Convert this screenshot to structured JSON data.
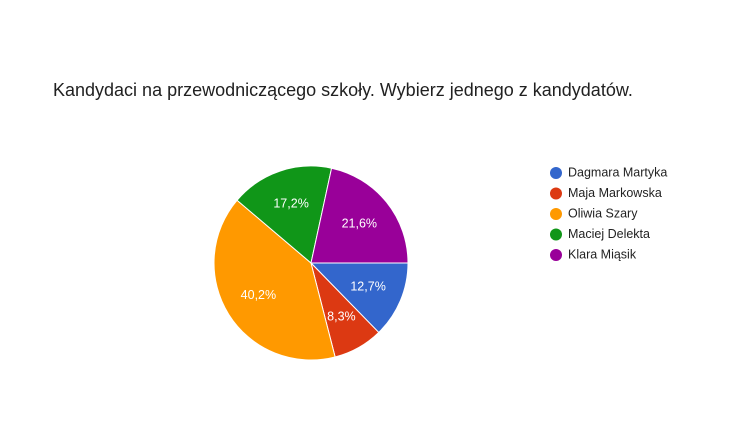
{
  "chart_data": {
    "type": "pie",
    "title": "Kandydaci na przewodniczącego szkoły. Wybierz jednego z kandydatów.",
    "series": [
      {
        "name": "Dagmara Martyka",
        "value": 12.7,
        "label": "12,7%",
        "color": "#3366cc"
      },
      {
        "name": "Maja Markowska",
        "value": 8.3,
        "label": "8,3%",
        "color": "#dc3912"
      },
      {
        "name": "Oliwia Szary",
        "value": 40.2,
        "label": "40,2%",
        "color": "#ff9900"
      },
      {
        "name": "Maciej Delekta",
        "value": 17.2,
        "label": "17,2%",
        "color": "#109618"
      },
      {
        "name": "Klara Miąsik",
        "value": 21.6,
        "label": "21,6%",
        "color": "#990099"
      }
    ],
    "legend": "right"
  }
}
